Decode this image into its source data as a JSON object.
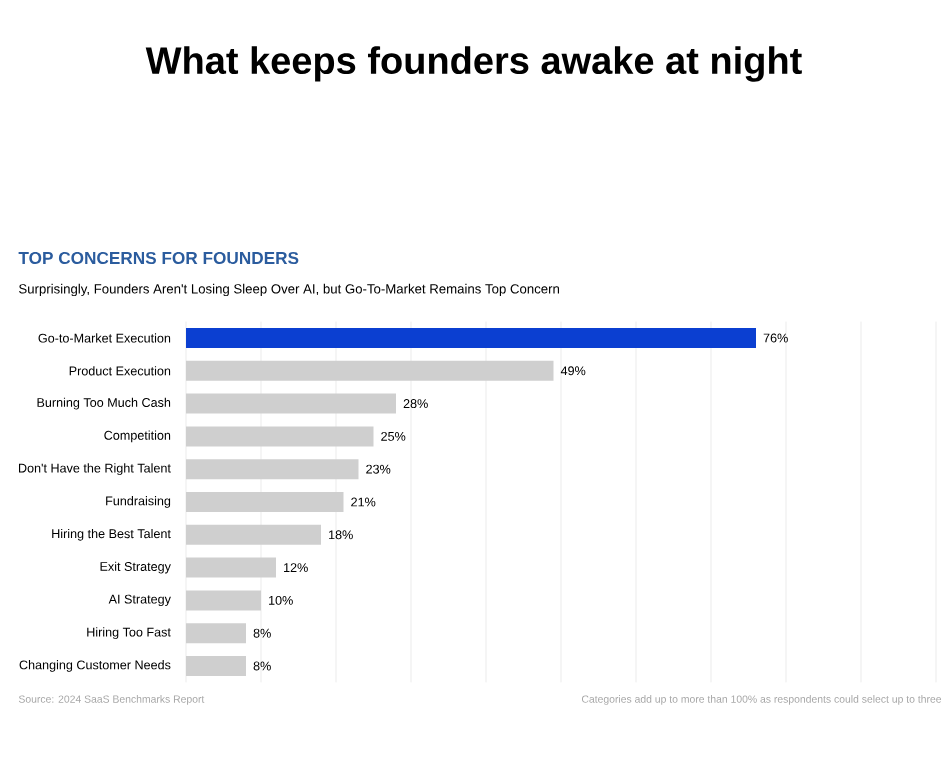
{
  "chart_data": {
    "type": "bar",
    "orientation": "horizontal",
    "title": "What keeps founders awake at night",
    "subtitle": "TOP CONCERNS FOR FOUNDERS",
    "annotations": [
      "Surprisingly, Founders Aren't Losing Sleep Over AI, but Go-To-Market Remains Top Concern",
      "Source: 2024 SaaS Benchmarks Report",
      "Categories add up to more than 100% as respondents could select up to three"
    ],
    "categories": [
      "Go-to-Market Execution",
      "Product Execution",
      "Burning Too Much Cash",
      "Competition",
      "Don't Have the Right Talent",
      "Fundraising",
      "Hiring the Best Talent",
      "Exit Strategy",
      "AI Strategy",
      "Hiring Too Fast",
      "Changing Customer Needs"
    ],
    "values": [
      76,
      49,
      28,
      25,
      23,
      21,
      18,
      12,
      10,
      8,
      8
    ],
    "value_labels": [
      "76%",
      "49%",
      "28%",
      "25%",
      "23%",
      "21%",
      "18%",
      "12%",
      "10%",
      "8%",
      "8%"
    ],
    "colors": [
      "#0b3fd1",
      "#cfcfcf",
      "#cfcfcf",
      "#cfcfcf",
      "#cfcfcf",
      "#cfcfcf",
      "#cfcfcf",
      "#cfcfcf",
      "#cfcfcf",
      "#cfcfcf",
      "#cfcfcf"
    ],
    "xlim": [
      0,
      100
    ],
    "xticks": [
      {
        "value": 0,
        "label": null
      },
      {
        "value": 10,
        "label": null
      },
      {
        "value": 20,
        "label": null
      },
      {
        "value": 30,
        "label": null
      },
      {
        "value": 40,
        "label": null
      },
      {
        "value": 50,
        "label": null
      },
      {
        "value": 60,
        "label": null
      },
      {
        "value": 70,
        "label": null
      },
      {
        "value": 80,
        "label": null
      },
      {
        "value": 90,
        "label": null
      },
      {
        "value": 100,
        "label": null
      }
    ],
    "grid": "x",
    "tick_labels": "y"
  }
}
